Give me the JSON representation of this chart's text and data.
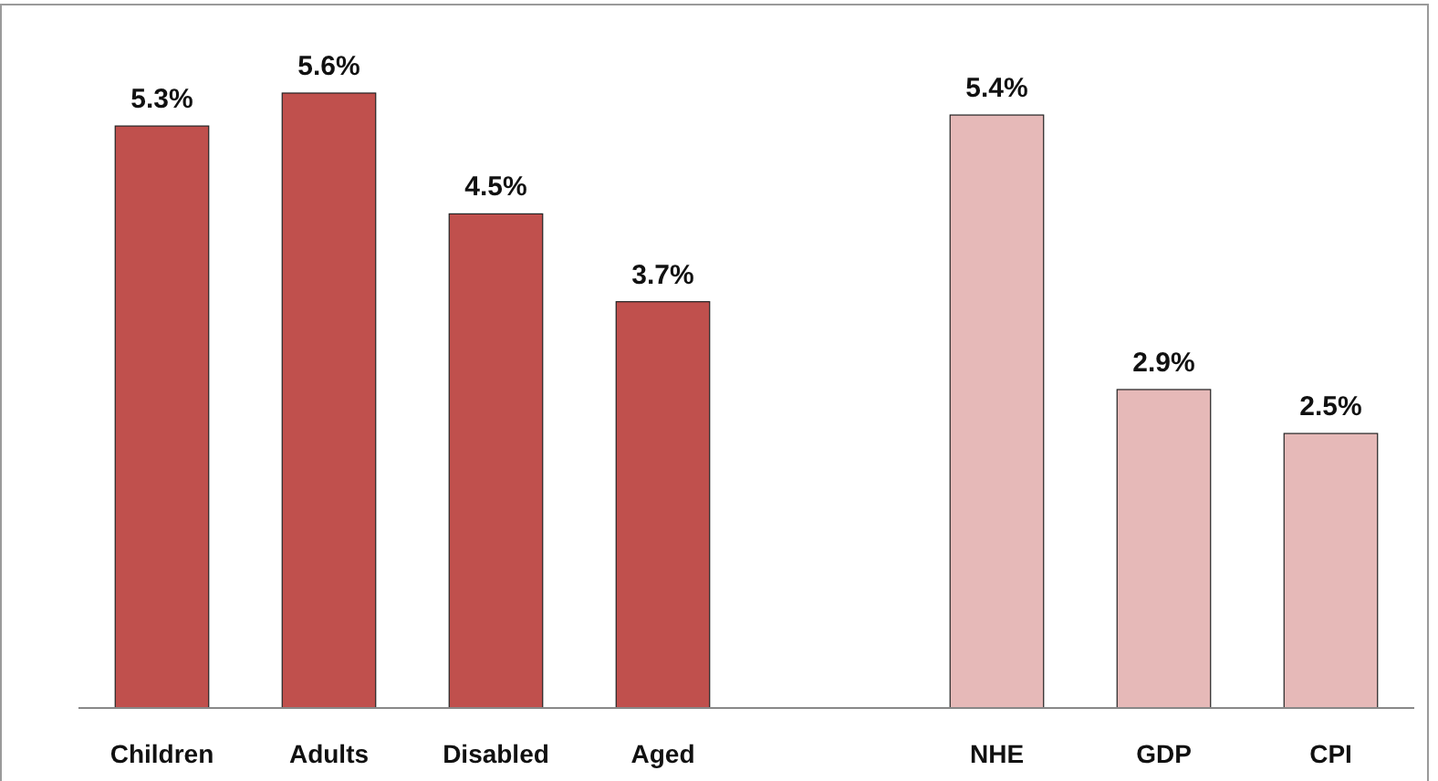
{
  "chart_data": {
    "type": "bar",
    "categories": [
      "Children",
      "Adults",
      "Disabled",
      "Aged",
      null,
      "NHE",
      "GDP",
      "CPI"
    ],
    "values": [
      5.3,
      5.6,
      4.5,
      3.7,
      null,
      5.4,
      2.9,
      2.5
    ],
    "colors": [
      "#c0504d",
      "#c0504d",
      "#c0504d",
      "#c0504d",
      null,
      "#e6b9b8",
      "#e6b9b8",
      "#e6b9b8"
    ],
    "value_labels": [
      "5.3%",
      "5.6%",
      "4.5%",
      "3.7%",
      null,
      "5.4%",
      "2.9%",
      "2.5%"
    ]
  }
}
